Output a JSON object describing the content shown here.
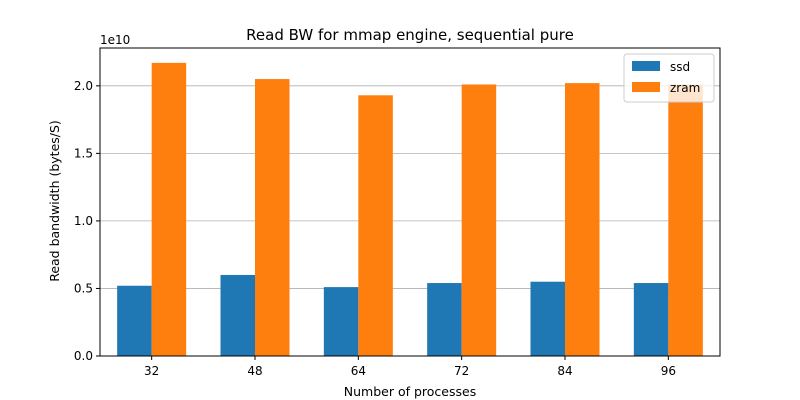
{
  "chart_data": {
    "type": "bar",
    "title": "Read BW for mmap engine, sequential pure",
    "xlabel": "Number of processes",
    "ylabel": "Read bandwidth (bytes/S)",
    "y_offset_text": "1e10",
    "categories": [
      "32",
      "48",
      "64",
      "72",
      "84",
      "96"
    ],
    "series": [
      {
        "name": "ssd",
        "color": "#1f77b4",
        "values": [
          5200000000.0,
          6000000000.0,
          5100000000.0,
          5400000000.0,
          5500000000.0,
          5400000000.0
        ]
      },
      {
        "name": "zram",
        "color": "#ff7f0e",
        "values": [
          21700000000.0,
          20500000000.0,
          19300000000.0,
          20100000000.0,
          20200000000.0,
          20100000000.0
        ]
      }
    ],
    "ylim": [
      0,
      22800000000.0
    ],
    "yticks": [
      0,
      5000000000.0,
      10000000000.0,
      15000000000.0,
      20000000000.0
    ],
    "ytick_labels": [
      "0.0",
      "0.5",
      "1.0",
      "1.5",
      "2.0"
    ],
    "grid": "y",
    "legend": "top-right"
  }
}
